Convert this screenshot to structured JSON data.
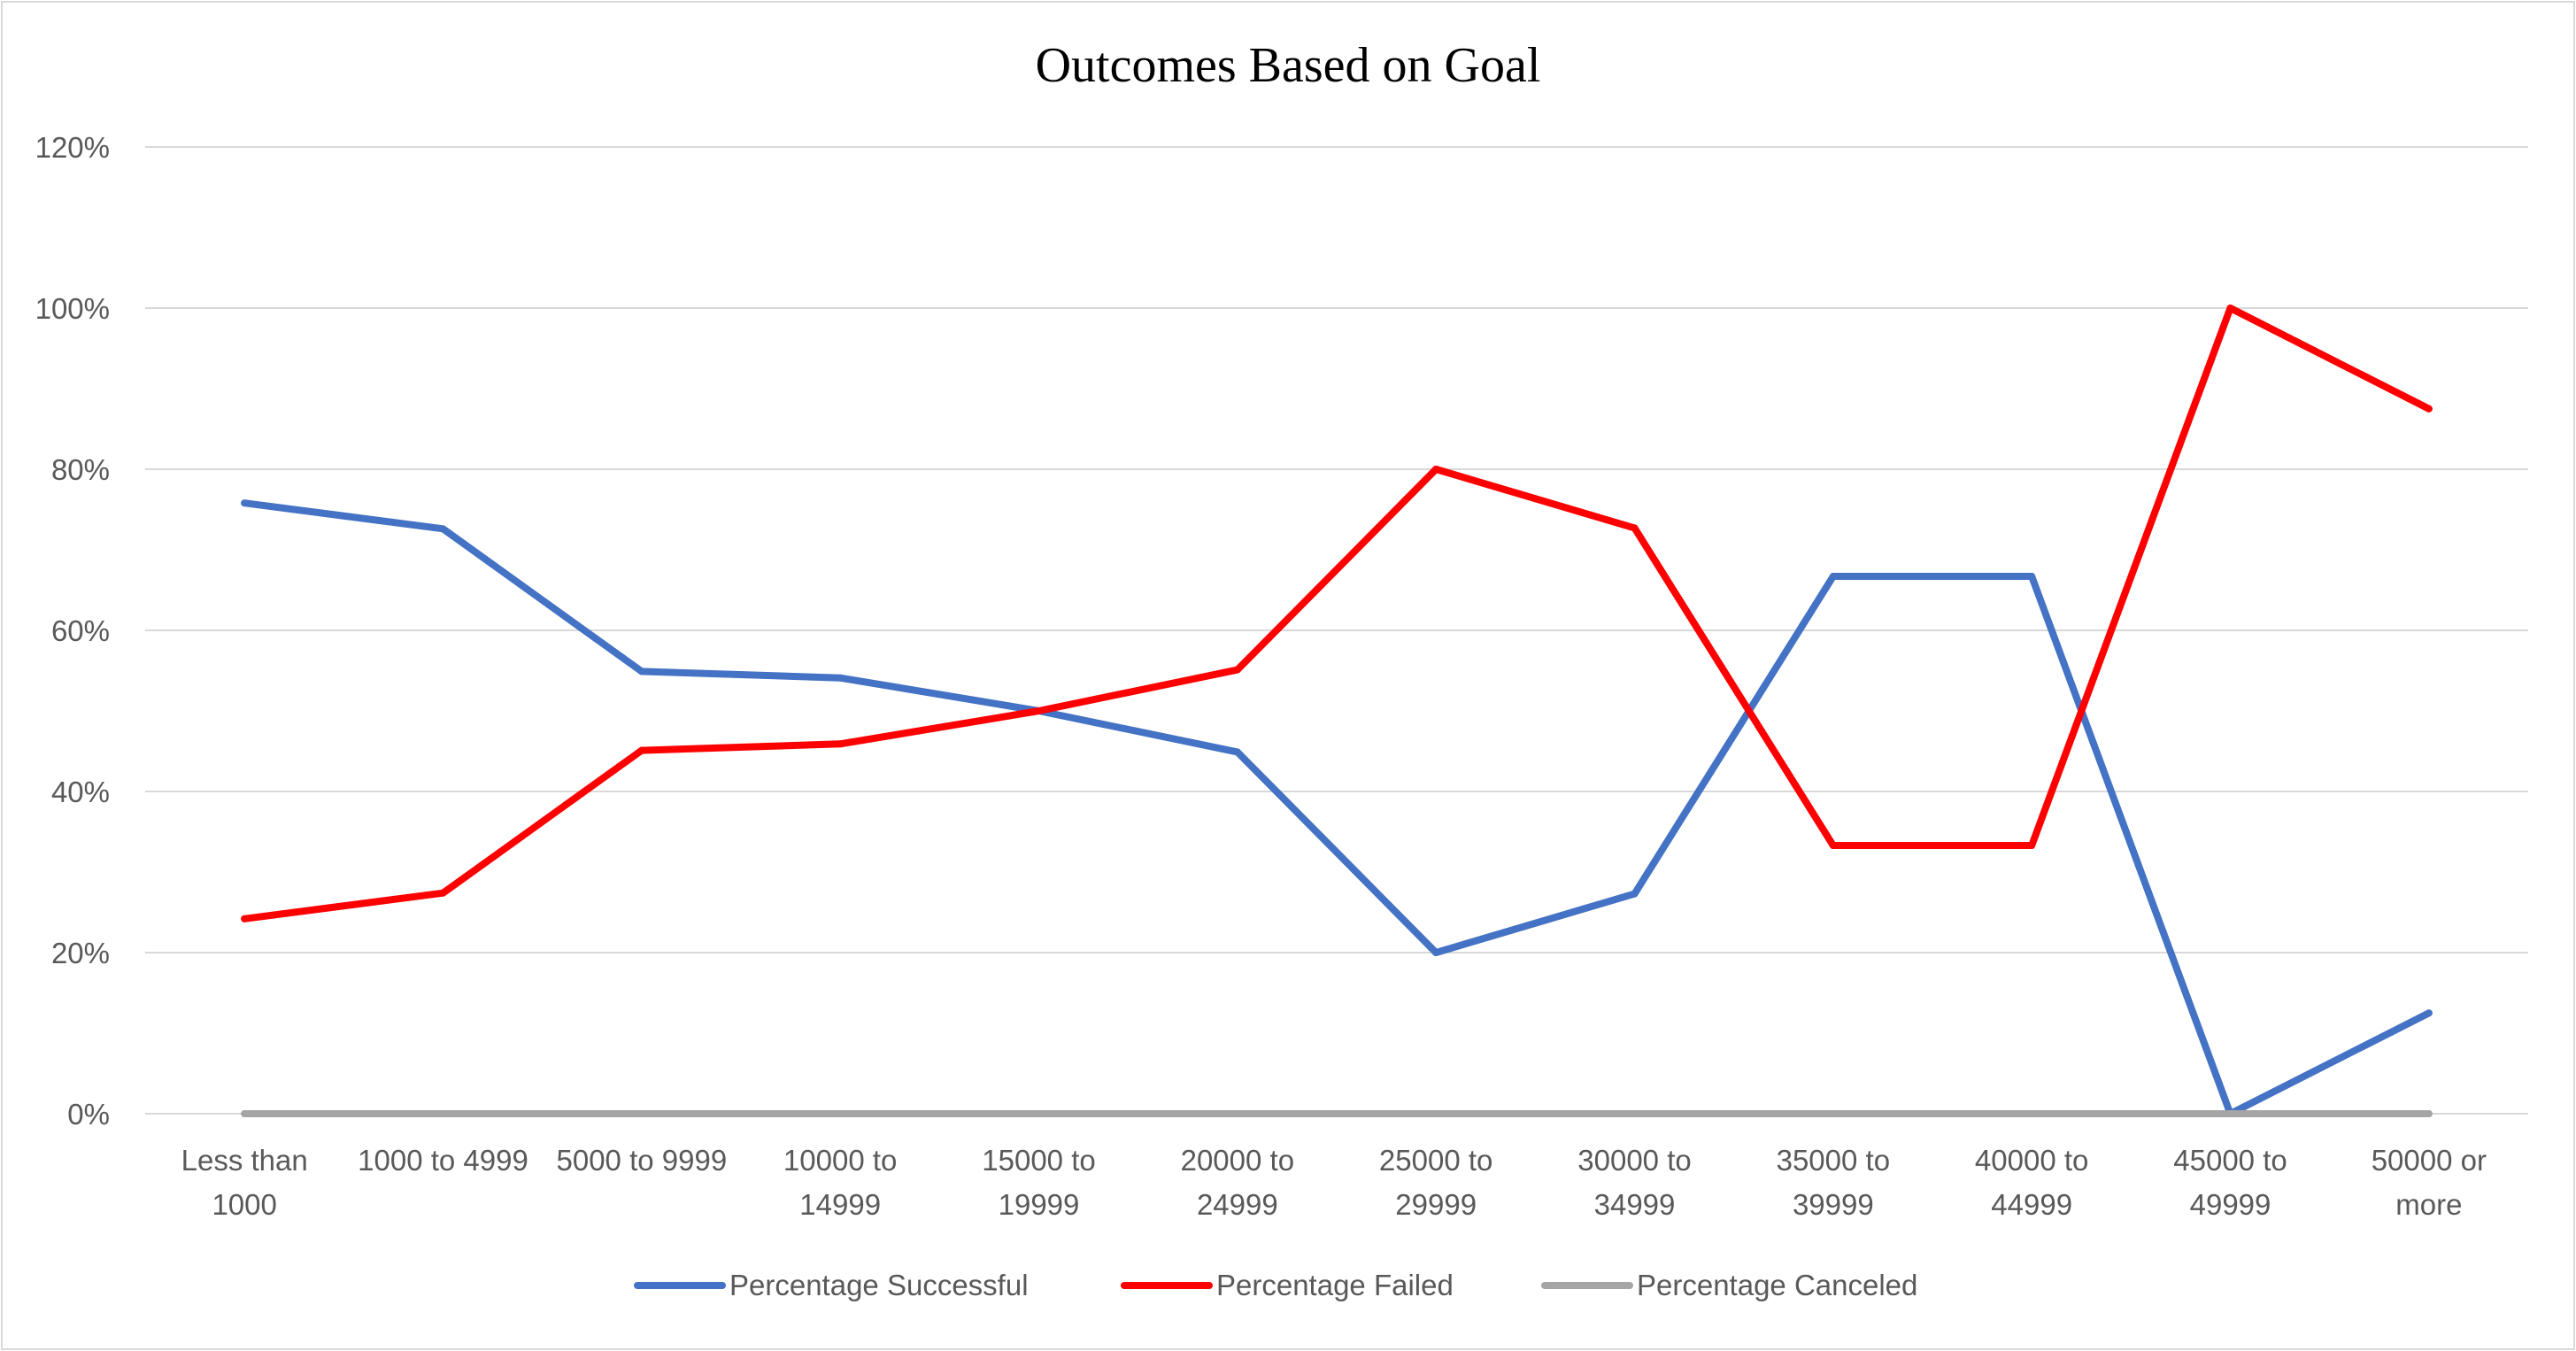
{
  "chart_data": {
    "type": "line",
    "title": "Outcomes Based on Goal",
    "xlabel": "",
    "ylabel": "",
    "categories": [
      [
        "Less than",
        "1000"
      ],
      [
        "1000 to 4999"
      ],
      [
        "5000 to 9999"
      ],
      [
        "10000 to",
        "14999"
      ],
      [
        "15000 to",
        "19999"
      ],
      [
        "20000 to",
        "24999"
      ],
      [
        "25000 to",
        "29999"
      ],
      [
        "30000 to",
        "34999"
      ],
      [
        "35000 to",
        "39999"
      ],
      [
        "40000 to",
        "44999"
      ],
      [
        "45000 to",
        "49999"
      ],
      [
        "50000 or",
        "more"
      ]
    ],
    "ylim": [
      0,
      1.2
    ],
    "yticks": [
      {
        "value": 0,
        "label": "0%"
      },
      {
        "value": 0.2,
        "label": "20%"
      },
      {
        "value": 0.4,
        "label": "40%"
      },
      {
        "value": 0.6,
        "label": "60%"
      },
      {
        "value": 0.8,
        "label": "80%"
      },
      {
        "value": 1.0,
        "label": "100%"
      },
      {
        "value": 1.2,
        "label": "120%"
      }
    ],
    "grid": true,
    "legend_position": "bottom",
    "series": [
      {
        "name": "Percentage Successful",
        "color": "#4472c4",
        "values": [
          0.758,
          0.726,
          0.549,
          0.541,
          0.5,
          0.449,
          0.2,
          0.273,
          0.667,
          0.667,
          0.0,
          0.125
        ]
      },
      {
        "name": "Percentage Failed",
        "color": "#ff0000",
        "values": [
          0.242,
          0.274,
          0.451,
          0.459,
          0.5,
          0.551,
          0.8,
          0.727,
          0.333,
          0.333,
          1.0,
          0.875
        ]
      },
      {
        "name": "Percentage Canceled",
        "color": "#a5a5a5",
        "values": [
          0,
          0,
          0,
          0,
          0,
          0,
          0,
          0,
          0,
          0,
          0,
          0
        ]
      }
    ]
  }
}
